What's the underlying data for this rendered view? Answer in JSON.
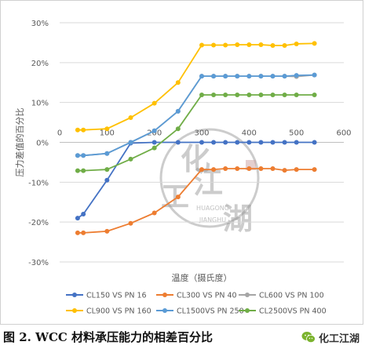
{
  "chart_data": {
    "type": "line",
    "title": "",
    "xlabel": "温度（摄氏度）",
    "ylabel": "压力差值的百分比",
    "xlim": [
      0,
      600
    ],
    "ylim": [
      -30,
      30
    ],
    "x_ticks": [
      "0",
      "100",
      "200",
      "300",
      "400",
      "500",
      "600"
    ],
    "y_ticks": [
      "30%",
      "20%",
      "10%",
      "0%",
      "-10%",
      "-20%",
      "-30%"
    ],
    "grid": "horizontal",
    "legend_position": "bottom",
    "series": [
      {
        "name": "CL150 VS PN 16",
        "color": "#4472C4",
        "points": [
          [
            38,
            -19
          ],
          [
            50,
            -18
          ],
          [
            100,
            -9.5
          ],
          [
            150,
            -0.2
          ],
          [
            200,
            0
          ],
          [
            250,
            0
          ],
          [
            300,
            0
          ],
          [
            325,
            0
          ],
          [
            350,
            0
          ],
          [
            375,
            0
          ],
          [
            400,
            0
          ],
          [
            425,
            0
          ],
          [
            450,
            0
          ],
          [
            475,
            0
          ],
          [
            500,
            0
          ],
          [
            538,
            0
          ]
        ]
      },
      {
        "name": "CL300 VS PN 40",
        "color": "#ED7D31",
        "points": [
          [
            38,
            -22.7
          ],
          [
            50,
            -22.7
          ],
          [
            100,
            -22.3
          ],
          [
            150,
            -20.3
          ],
          [
            200,
            -17.7
          ],
          [
            250,
            -13.7
          ],
          [
            300,
            -6.8
          ],
          [
            325,
            -6.8
          ],
          [
            350,
            -6.6
          ],
          [
            375,
            -6.6
          ],
          [
            400,
            -6.6
          ],
          [
            425,
            -6.6
          ],
          [
            450,
            -6.6
          ],
          [
            475,
            -7
          ],
          [
            500,
            -6.8
          ],
          [
            538,
            -6.8
          ]
        ]
      },
      {
        "name": "CL600 VS PN 100",
        "color": "#A5A5A5",
        "points": [
          [
            38,
            -3.3
          ],
          [
            50,
            -3.3
          ],
          [
            100,
            -2.8
          ],
          [
            150,
            0
          ],
          [
            200,
            2.9
          ],
          [
            250,
            7.8
          ],
          [
            300,
            16.6
          ],
          [
            325,
            16.6
          ],
          [
            350,
            16.6
          ],
          [
            375,
            16.6
          ],
          [
            400,
            16.6
          ],
          [
            425,
            16.6
          ],
          [
            450,
            16.6
          ],
          [
            475,
            16.6
          ],
          [
            500,
            16.5
          ],
          [
            538,
            16.9
          ]
        ]
      },
      {
        "name": "CL900 VS PN 160",
        "color": "#FFC000",
        "points": [
          [
            38,
            3.1
          ],
          [
            50,
            3.1
          ],
          [
            100,
            3.4
          ],
          [
            150,
            6.2
          ],
          [
            200,
            9.8
          ],
          [
            250,
            15
          ],
          [
            300,
            24.4
          ],
          [
            325,
            24.4
          ],
          [
            350,
            24.4
          ],
          [
            375,
            24.5
          ],
          [
            400,
            24.5
          ],
          [
            425,
            24.5
          ],
          [
            450,
            24.3
          ],
          [
            475,
            24.3
          ],
          [
            500,
            24.7
          ],
          [
            538,
            24.8
          ]
        ]
      },
      {
        "name": "CL1500VS PN 250",
        "color": "#5B9BD5",
        "points": [
          [
            38,
            -3.3
          ],
          [
            50,
            -3.3
          ],
          [
            100,
            -2.8
          ],
          [
            150,
            0
          ],
          [
            200,
            2.9
          ],
          [
            250,
            7.8
          ],
          [
            300,
            16.6
          ],
          [
            325,
            16.6
          ],
          [
            350,
            16.6
          ],
          [
            375,
            16.6
          ],
          [
            400,
            16.6
          ],
          [
            425,
            16.6
          ],
          [
            450,
            16.6
          ],
          [
            475,
            16.6
          ],
          [
            500,
            16.8
          ],
          [
            538,
            16.9
          ]
        ]
      },
      {
        "name": "CL2500VS PN 400",
        "color": "#70AD47",
        "points": [
          [
            38,
            -7.1
          ],
          [
            50,
            -7.1
          ],
          [
            100,
            -6.8
          ],
          [
            150,
            -4.2
          ],
          [
            200,
            -1.4
          ],
          [
            250,
            3.4
          ],
          [
            300,
            11.9
          ],
          [
            325,
            11.9
          ],
          [
            350,
            11.9
          ],
          [
            375,
            11.9
          ],
          [
            400,
            11.9
          ],
          [
            425,
            11.9
          ],
          [
            450,
            11.9
          ],
          [
            475,
            11.9
          ],
          [
            500,
            11.9
          ],
          [
            538,
            11.9
          ]
        ]
      }
    ]
  },
  "watermark": {
    "chars": [
      "化",
      "工",
      "江",
      "湖"
    ],
    "latin_top": "HUAGONG",
    "latin_bottom": "JIANGHU",
    "color": "#8f8f8f"
  },
  "caption": {
    "text": "图 2.  WCC 材料承压能力的相差百分比"
  },
  "wechat_badge": {
    "label": "化工江湖",
    "icon": "wechat-icon",
    "color": "#7bb32e"
  }
}
